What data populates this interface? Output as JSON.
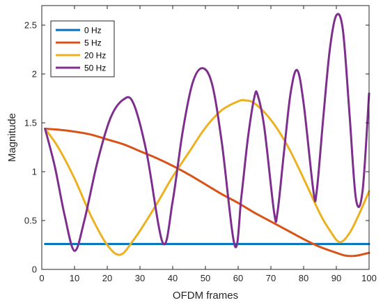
{
  "chart_data": {
    "type": "line",
    "title": "",
    "xlabel": "OFDM frames",
    "ylabel": "Magnitude",
    "xlim": [
      0,
      100
    ],
    "ylim": [
      0,
      2.7
    ],
    "xticks": [
      0,
      10,
      20,
      30,
      40,
      50,
      60,
      70,
      80,
      90,
      100
    ],
    "yticks": [
      0,
      0.5,
      1,
      1.5,
      2,
      2.5
    ],
    "ytick_labels": [
      "0",
      "0.5",
      "1",
      "1.5",
      "2",
      "2.5"
    ],
    "grid": false,
    "legend": "top-left",
    "series": [
      {
        "name": "0 Hz",
        "color": "#0072BD",
        "x": [
          1,
          100
        ],
        "y": [
          0.26,
          0.26
        ]
      },
      {
        "name": "5 Hz",
        "color": "#D95319",
        "x": [
          1,
          5,
          10,
          15,
          20,
          25,
          30,
          35,
          40,
          45,
          50,
          55,
          60,
          65,
          70,
          75,
          80,
          85,
          90,
          93,
          96,
          100
        ],
        "y": [
          1.44,
          1.43,
          1.41,
          1.38,
          1.33,
          1.28,
          1.21,
          1.14,
          1.06,
          0.97,
          0.87,
          0.77,
          0.68,
          0.58,
          0.49,
          0.4,
          0.31,
          0.23,
          0.17,
          0.14,
          0.14,
          0.17
        ]
      },
      {
        "name": "20 Hz",
        "color": "#EDB120",
        "x": [
          1,
          5,
          10,
          15,
          20,
          24,
          28,
          32,
          36,
          40,
          45,
          50,
          55,
          60,
          62,
          65,
          70,
          75,
          80,
          85,
          88,
          91,
          94,
          97,
          100
        ],
        "y": [
          1.44,
          1.25,
          0.93,
          0.55,
          0.25,
          0.15,
          0.3,
          0.5,
          0.72,
          0.95,
          1.2,
          1.45,
          1.63,
          1.72,
          1.73,
          1.7,
          1.53,
          1.27,
          0.93,
          0.57,
          0.4,
          0.28,
          0.37,
          0.57,
          0.8
        ]
      },
      {
        "name": "50 Hz",
        "color": "#7E2F8E",
        "x": [
          1,
          4,
          7,
          10,
          13,
          17,
          21,
          25,
          28,
          32,
          37,
          40,
          43,
          46,
          49,
          52,
          55,
          59,
          61,
          63,
          65,
          66,
          68,
          71,
          72,
          74,
          76,
          78,
          80,
          83,
          84,
          86,
          88,
          90,
          92,
          94,
          96,
          98,
          100
        ],
        "y": [
          1.44,
          1.05,
          0.55,
          0.19,
          0.5,
          1.1,
          1.55,
          1.74,
          1.7,
          1.2,
          0.27,
          0.7,
          1.4,
          1.9,
          2.06,
          1.9,
          1.3,
          0.24,
          0.75,
          1.35,
          1.77,
          1.78,
          1.45,
          0.58,
          0.58,
          1.2,
          1.8,
          2.04,
          1.7,
          0.8,
          0.8,
          1.55,
          2.25,
          2.6,
          2.45,
          1.6,
          0.72,
          0.8,
          1.8
        ]
      }
    ]
  }
}
